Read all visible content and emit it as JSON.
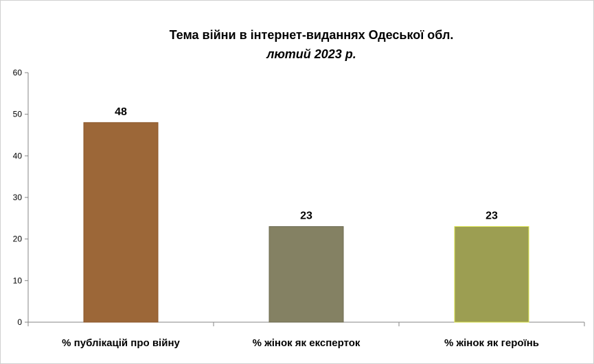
{
  "chart_data": {
    "type": "bar",
    "title": "Тема війни в інтернет-виданнях  Одеської обл.",
    "subtitle": "лютий 2023 р.",
    "categories": [
      "% публікацій про війну",
      "% жінок як експерток",
      "% жінок як героїнь"
    ],
    "values": [
      48,
      23,
      23
    ],
    "data_labels": [
      "48",
      "23",
      "23"
    ],
    "colors": [
      "#9c6738",
      "#848163",
      "#9c9e52"
    ],
    "edge_colors": [
      "#8a5628",
      "#6e6b52",
      "#d8e04a"
    ],
    "ylim": [
      0,
      60
    ],
    "yticks": [
      0,
      10,
      20,
      30,
      40,
      50,
      60
    ],
    "grid": false,
    "legend": "none",
    "xlabel": "",
    "ylabel": ""
  }
}
